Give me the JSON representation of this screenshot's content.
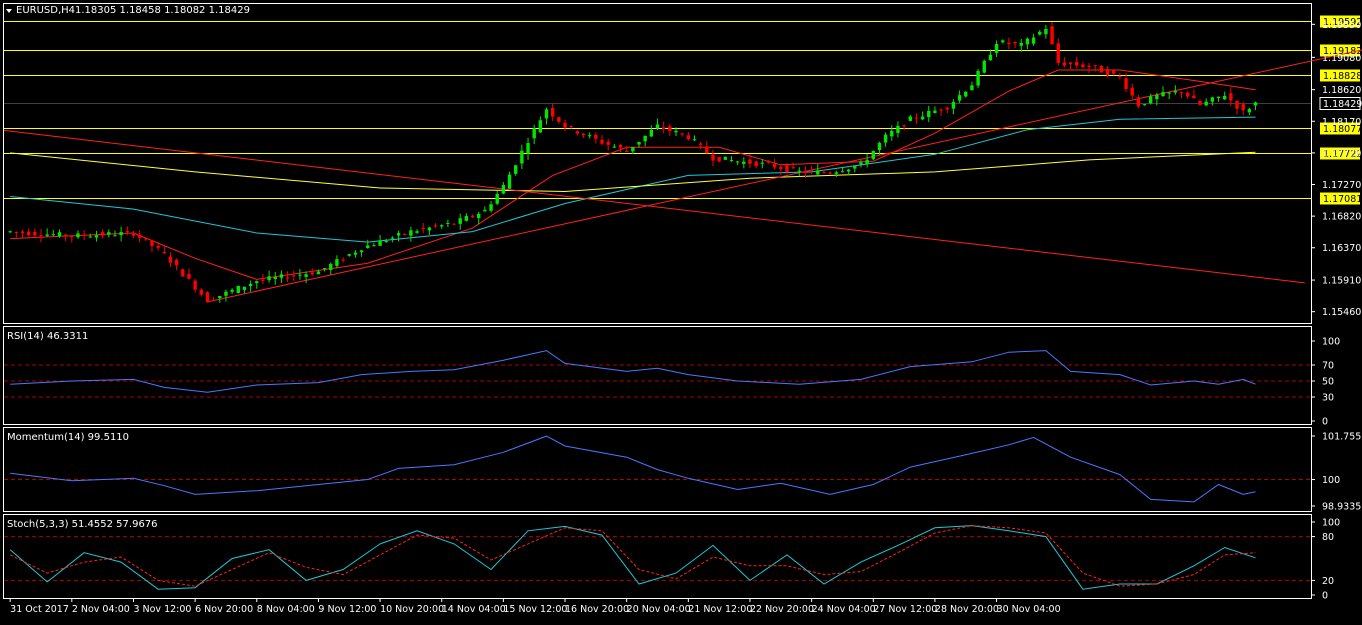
{
  "header": {
    "symbol_text": "EURUSD,H4",
    "ohlc_text": "1.18305 1.18458 1.18082 1.18429"
  },
  "colors": {
    "background": "#000000",
    "frame": "#ffffff",
    "bull_candle": "#00e600",
    "bear_candle": "#ff0000",
    "hline": "#ffff00",
    "trendline": "#ff2020",
    "ma_fast": "#ff2020",
    "ma_mid": "#20c8d8",
    "ma_slow": "#ffff40",
    "oscillator": "#4a78ff",
    "signal": "#ff2020",
    "level_line": "#b00000",
    "label_box": "#ffff00"
  },
  "chart_data": {
    "type": "candlestick",
    "symbol": "EURUSD",
    "timeframe": "H4",
    "main": {
      "ylim": [
        1.1537,
        1.1964
      ],
      "y_ticks": [
        "1.19550",
        "1.19080",
        "1.18620",
        "1.18170",
        "1.17720",
        "1.17270",
        "1.16820",
        "1.16370",
        "1.15910",
        "1.15460"
      ],
      "horizontal_lines": [
        {
          "label": "1.19592",
          "value": 1.19592
        },
        {
          "label": "1.19182",
          "value": 1.19182
        },
        {
          "label": "1.18828",
          "value": 1.18828
        },
        {
          "label": "1.18077",
          "value": 1.18077
        },
        {
          "label": "1.17722",
          "value": 1.17722
        },
        {
          "label": "1.17081",
          "value": 1.17081
        }
      ],
      "current_price": {
        "label": "1.18429",
        "value": 1.18429
      },
      "trendlines": [
        {
          "name": "support",
          "x": [
            32,
            220
          ],
          "y": [
            1.156,
            1.192
          ]
        },
        {
          "name": "resistance",
          "x": [
            -1,
            210
          ],
          "y": [
            1.1804,
            1.1587
          ]
        }
      ],
      "close_points": [
        {
          "x": 0,
          "y": 1.166
        },
        {
          "x": 10,
          "y": 1.1654
        },
        {
          "x": 20,
          "y": 1.1658
        },
        {
          "x": 25,
          "y": 1.1628
        },
        {
          "x": 32,
          "y": 1.1562
        },
        {
          "x": 40,
          "y": 1.159
        },
        {
          "x": 50,
          "y": 1.1603
        },
        {
          "x": 57,
          "y": 1.1637
        },
        {
          "x": 65,
          "y": 1.166
        },
        {
          "x": 72,
          "y": 1.1672
        },
        {
          "x": 77,
          "y": 1.169
        },
        {
          "x": 80,
          "y": 1.1725
        },
        {
          "x": 84,
          "y": 1.179
        },
        {
          "x": 87,
          "y": 1.1835
        },
        {
          "x": 90,
          "y": 1.181
        },
        {
          "x": 96,
          "y": 1.1787
        },
        {
          "x": 100,
          "y": 1.1775
        },
        {
          "x": 105,
          "y": 1.181
        },
        {
          "x": 110,
          "y": 1.1795
        },
        {
          "x": 114,
          "y": 1.1765
        },
        {
          "x": 118,
          "y": 1.176
        },
        {
          "x": 123,
          "y": 1.1755
        },
        {
          "x": 128,
          "y": 1.1745
        },
        {
          "x": 133,
          "y": 1.1745
        },
        {
          "x": 138,
          "y": 1.1755
        },
        {
          "x": 142,
          "y": 1.1795
        },
        {
          "x": 146,
          "y": 1.182
        },
        {
          "x": 152,
          "y": 1.1838
        },
        {
          "x": 156,
          "y": 1.187
        },
        {
          "x": 160,
          "y": 1.193
        },
        {
          "x": 164,
          "y": 1.1925
        },
        {
          "x": 168,
          "y": 1.195
        },
        {
          "x": 170,
          "y": 1.19
        },
        {
          "x": 175,
          "y": 1.1895
        },
        {
          "x": 180,
          "y": 1.188
        },
        {
          "x": 183,
          "y": 1.184
        },
        {
          "x": 186,
          "y": 1.1853
        },
        {
          "x": 190,
          "y": 1.186
        },
        {
          "x": 193,
          "y": 1.184
        },
        {
          "x": 197,
          "y": 1.1855
        },
        {
          "x": 200,
          "y": 1.183
        },
        {
          "x": 202,
          "y": 1.1843
        }
      ],
      "moving_averages": [
        {
          "name": "ma_fast",
          "points": [
            {
              "x": 0,
              "y": 1.165
            },
            {
              "x": 20,
              "y": 1.1658
            },
            {
              "x": 30,
              "y": 1.1622
            },
            {
              "x": 40,
              "y": 1.1592
            },
            {
              "x": 58,
              "y": 1.1615
            },
            {
              "x": 75,
              "y": 1.1665
            },
            {
              "x": 88,
              "y": 1.174
            },
            {
              "x": 100,
              "y": 1.178
            },
            {
              "x": 115,
              "y": 1.178
            },
            {
              "x": 125,
              "y": 1.1755
            },
            {
              "x": 140,
              "y": 1.176
            },
            {
              "x": 150,
              "y": 1.18
            },
            {
              "x": 162,
              "y": 1.186
            },
            {
              "x": 170,
              "y": 1.189
            },
            {
              "x": 180,
              "y": 1.189
            },
            {
              "x": 192,
              "y": 1.1875
            },
            {
              "x": 202,
              "y": 1.1862
            }
          ]
        },
        {
          "name": "ma_mid",
          "points": [
            {
              "x": 0,
              "y": 1.171
            },
            {
              "x": 20,
              "y": 1.1692
            },
            {
              "x": 40,
              "y": 1.1658
            },
            {
              "x": 58,
              "y": 1.1645
            },
            {
              "x": 75,
              "y": 1.166
            },
            {
              "x": 90,
              "y": 1.17
            },
            {
              "x": 110,
              "y": 1.174
            },
            {
              "x": 130,
              "y": 1.1745
            },
            {
              "x": 150,
              "y": 1.177
            },
            {
              "x": 165,
              "y": 1.1805
            },
            {
              "x": 180,
              "y": 1.182
            },
            {
              "x": 202,
              "y": 1.1823
            }
          ]
        },
        {
          "name": "ma_slow",
          "points": [
            {
              "x": 0,
              "y": 1.1772
            },
            {
              "x": 30,
              "y": 1.1745
            },
            {
              "x": 60,
              "y": 1.1722
            },
            {
              "x": 90,
              "y": 1.1717
            },
            {
              "x": 120,
              "y": 1.1736
            },
            {
              "x": 150,
              "y": 1.1745
            },
            {
              "x": 175,
              "y": 1.1762
            },
            {
              "x": 202,
              "y": 1.1773
            }
          ]
        }
      ]
    },
    "rsi": {
      "label": "RSI(14) 46.3311",
      "ylim": [
        0,
        100
      ],
      "y_ticks": [
        "100",
        "70",
        "50",
        "30",
        "0"
      ],
      "levels": [
        70,
        50,
        30
      ],
      "points": [
        {
          "x": 0,
          "y": 46
        },
        {
          "x": 10,
          "y": 50
        },
        {
          "x": 20,
          "y": 52
        },
        {
          "x": 25,
          "y": 42
        },
        {
          "x": 32,
          "y": 36
        },
        {
          "x": 40,
          "y": 45
        },
        {
          "x": 50,
          "y": 48
        },
        {
          "x": 57,
          "y": 58
        },
        {
          "x": 65,
          "y": 62
        },
        {
          "x": 72,
          "y": 64
        },
        {
          "x": 80,
          "y": 76
        },
        {
          "x": 87,
          "y": 88
        },
        {
          "x": 90,
          "y": 72
        },
        {
          "x": 100,
          "y": 62
        },
        {
          "x": 105,
          "y": 66
        },
        {
          "x": 110,
          "y": 58
        },
        {
          "x": 118,
          "y": 50
        },
        {
          "x": 128,
          "y": 46
        },
        {
          "x": 138,
          "y": 52
        },
        {
          "x": 146,
          "y": 68
        },
        {
          "x": 156,
          "y": 74
        },
        {
          "x": 162,
          "y": 86
        },
        {
          "x": 168,
          "y": 88
        },
        {
          "x": 172,
          "y": 62
        },
        {
          "x": 180,
          "y": 58
        },
        {
          "x": 185,
          "y": 45
        },
        {
          "x": 192,
          "y": 50
        },
        {
          "x": 196,
          "y": 46
        },
        {
          "x": 200,
          "y": 52
        },
        {
          "x": 202,
          "y": 46
        }
      ]
    },
    "momentum": {
      "label": "Momentum(14) 99.5110",
      "ylim": [
        98.9335,
        101.755
      ],
      "y_ticks": [
        "101.755",
        "100",
        "98.9335"
      ],
      "levels": [
        100
      ],
      "points": [
        {
          "x": 0,
          "y": 100.25
        },
        {
          "x": 10,
          "y": 99.95
        },
        {
          "x": 20,
          "y": 100.05
        },
        {
          "x": 25,
          "y": 99.75
        },
        {
          "x": 30,
          "y": 99.4
        },
        {
          "x": 40,
          "y": 99.55
        },
        {
          "x": 50,
          "y": 99.8
        },
        {
          "x": 58,
          "y": 100.0
        },
        {
          "x": 63,
          "y": 100.45
        },
        {
          "x": 72,
          "y": 100.6
        },
        {
          "x": 80,
          "y": 101.1
        },
        {
          "x": 87,
          "y": 101.75
        },
        {
          "x": 90,
          "y": 101.35
        },
        {
          "x": 100,
          "y": 100.9
        },
        {
          "x": 105,
          "y": 100.4
        },
        {
          "x": 110,
          "y": 100.05
        },
        {
          "x": 118,
          "y": 99.6
        },
        {
          "x": 125,
          "y": 99.85
        },
        {
          "x": 133,
          "y": 99.4
        },
        {
          "x": 140,
          "y": 99.8
        },
        {
          "x": 146,
          "y": 100.5
        },
        {
          "x": 155,
          "y": 101.0
        },
        {
          "x": 162,
          "y": 101.4
        },
        {
          "x": 166,
          "y": 101.7
        },
        {
          "x": 172,
          "y": 100.9
        },
        {
          "x": 180,
          "y": 100.2
        },
        {
          "x": 185,
          "y": 99.2
        },
        {
          "x": 192,
          "y": 99.1
        },
        {
          "x": 196,
          "y": 99.8
        },
        {
          "x": 200,
          "y": 99.4
        },
        {
          "x": 202,
          "y": 99.51
        }
      ]
    },
    "stoch": {
      "label": "Stoch(5,3,3) 51.4552 57.9676",
      "ylim": [
        0,
        100
      ],
      "y_ticks": [
        "100",
        "80",
        "20",
        "0"
      ],
      "levels": [
        80,
        20
      ],
      "main_points": [
        {
          "x": 0,
          "y": 62
        },
        {
          "x": 6,
          "y": 18
        },
        {
          "x": 12,
          "y": 58
        },
        {
          "x": 18,
          "y": 45
        },
        {
          "x": 24,
          "y": 8
        },
        {
          "x": 30,
          "y": 10
        },
        {
          "x": 36,
          "y": 50
        },
        {
          "x": 42,
          "y": 62
        },
        {
          "x": 48,
          "y": 20
        },
        {
          "x": 54,
          "y": 35
        },
        {
          "x": 60,
          "y": 70
        },
        {
          "x": 66,
          "y": 88
        },
        {
          "x": 72,
          "y": 70
        },
        {
          "x": 78,
          "y": 35
        },
        {
          "x": 84,
          "y": 88
        },
        {
          "x": 90,
          "y": 94
        },
        {
          "x": 96,
          "y": 82
        },
        {
          "x": 102,
          "y": 15
        },
        {
          "x": 108,
          "y": 30
        },
        {
          "x": 114,
          "y": 68
        },
        {
          "x": 120,
          "y": 20
        },
        {
          "x": 126,
          "y": 55
        },
        {
          "x": 132,
          "y": 15
        },
        {
          "x": 138,
          "y": 45
        },
        {
          "x": 144,
          "y": 68
        },
        {
          "x": 150,
          "y": 92
        },
        {
          "x": 156,
          "y": 95
        },
        {
          "x": 162,
          "y": 88
        },
        {
          "x": 168,
          "y": 80
        },
        {
          "x": 174,
          "y": 8
        },
        {
          "x": 180,
          "y": 15
        },
        {
          "x": 186,
          "y": 15
        },
        {
          "x": 192,
          "y": 40
        },
        {
          "x": 197,
          "y": 65
        },
        {
          "x": 202,
          "y": 51
        }
      ],
      "signal_points": [
        {
          "x": 0,
          "y": 55
        },
        {
          "x": 6,
          "y": 30
        },
        {
          "x": 12,
          "y": 45
        },
        {
          "x": 18,
          "y": 52
        },
        {
          "x": 24,
          "y": 20
        },
        {
          "x": 30,
          "y": 12
        },
        {
          "x": 36,
          "y": 35
        },
        {
          "x": 42,
          "y": 58
        },
        {
          "x": 48,
          "y": 38
        },
        {
          "x": 54,
          "y": 28
        },
        {
          "x": 60,
          "y": 55
        },
        {
          "x": 66,
          "y": 82
        },
        {
          "x": 72,
          "y": 78
        },
        {
          "x": 78,
          "y": 48
        },
        {
          "x": 84,
          "y": 70
        },
        {
          "x": 90,
          "y": 92
        },
        {
          "x": 96,
          "y": 88
        },
        {
          "x": 102,
          "y": 35
        },
        {
          "x": 108,
          "y": 22
        },
        {
          "x": 114,
          "y": 52
        },
        {
          "x": 120,
          "y": 40
        },
        {
          "x": 126,
          "y": 40
        },
        {
          "x": 132,
          "y": 28
        },
        {
          "x": 138,
          "y": 32
        },
        {
          "x": 144,
          "y": 58
        },
        {
          "x": 150,
          "y": 85
        },
        {
          "x": 156,
          "y": 95
        },
        {
          "x": 162,
          "y": 92
        },
        {
          "x": 168,
          "y": 85
        },
        {
          "x": 174,
          "y": 30
        },
        {
          "x": 180,
          "y": 12
        },
        {
          "x": 186,
          "y": 15
        },
        {
          "x": 192,
          "y": 28
        },
        {
          "x": 197,
          "y": 55
        },
        {
          "x": 202,
          "y": 58
        }
      ]
    },
    "x_axis": {
      "x_range": [
        -1,
        211
      ],
      "ticks": [
        {
          "label": "31 Oct 2017",
          "x": 0
        },
        {
          "label": "2 Nov 04:00",
          "x": 10
        },
        {
          "label": "3 Nov 12:00",
          "x": 20
        },
        {
          "label": "6 Nov 20:00",
          "x": 30
        },
        {
          "label": "8 Nov 04:00",
          "x": 40
        },
        {
          "label": "9 Nov 12:00",
          "x": 50
        },
        {
          "label": "10 Nov 20:00",
          "x": 60
        },
        {
          "label": "14 Nov 04:00",
          "x": 70
        },
        {
          "label": "15 Nov 12:00",
          "x": 80
        },
        {
          "label": "16 Nov 20:00",
          "x": 90
        },
        {
          "label": "20 Nov 04:00",
          "x": 100
        },
        {
          "label": "21 Nov 12:00",
          "x": 110
        },
        {
          "label": "22 Nov 20:00",
          "x": 120
        },
        {
          "label": "24 Nov 04:00",
          "x": 130
        },
        {
          "label": "27 Nov 12:00",
          "x": 140
        },
        {
          "label": "28 Nov 20:00",
          "x": 150
        },
        {
          "label": "30 Nov 04:00",
          "x": 160
        }
      ]
    }
  }
}
